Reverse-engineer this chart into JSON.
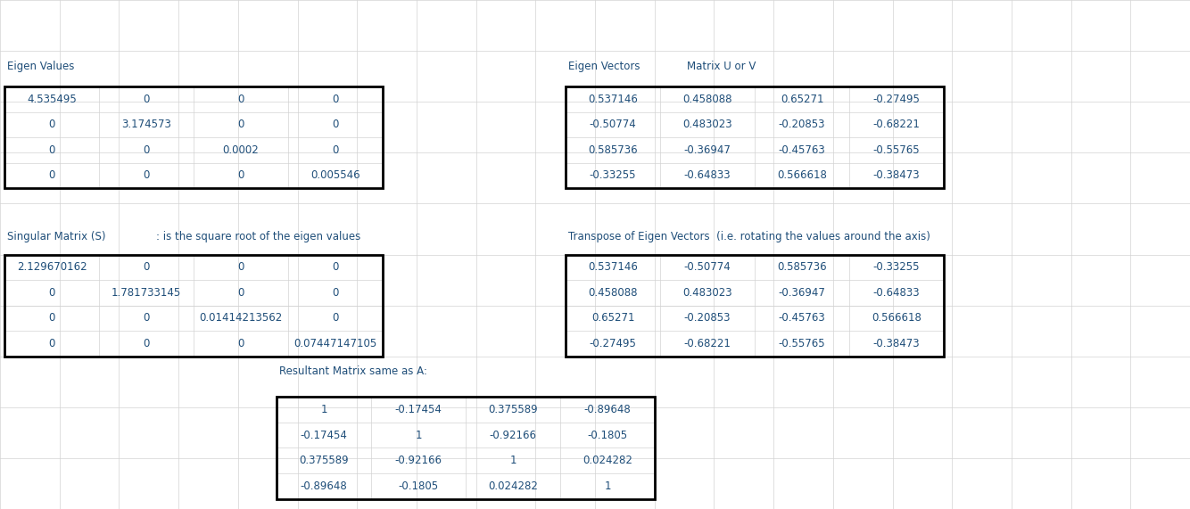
{
  "bg_color": "#ffffff",
  "grid_color": "#d3d3d3",
  "text_color": "#1f4e79",
  "border_color": "#000000",
  "font_size": 8.5,
  "eigen_values_label": "Eigen Values",
  "eigen_values": [
    [
      "4.535495",
      "0",
      "0",
      "0"
    ],
    [
      "0",
      "3.174573",
      "0",
      "0"
    ],
    [
      "0",
      "0",
      "0.0002",
      "0"
    ],
    [
      "0",
      "0",
      "0",
      "0.005546"
    ]
  ],
  "singular_matrix_label": "Singular Matrix (S)",
  "singular_matrix_note": ": is the square root of the eigen values",
  "singular_matrix": [
    [
      "2.129670162",
      "0",
      "0",
      "0"
    ],
    [
      "0",
      "1.781733145",
      "0",
      "0"
    ],
    [
      "0",
      "0",
      "0.01414213562",
      "0"
    ],
    [
      "0",
      "0",
      "0",
      "0.07447147105"
    ]
  ],
  "eigen_vectors_label": "Eigen Vectors",
  "matrix_uv_label": "Matrix U or V",
  "eigen_vectors": [
    [
      "0.537146",
      "0.458088",
      "0.65271",
      "-0.27495"
    ],
    [
      "-0.50774",
      "0.483023",
      "-0.20853",
      "-0.68221"
    ],
    [
      "0.585736",
      "-0.36947",
      "-0.45763",
      "-0.55765"
    ],
    [
      "-0.33255",
      "-0.64833",
      "0.566618",
      "-0.38473"
    ]
  ],
  "transpose_label": "Transpose of Eigen Vectors  (i.e. rotating the values around the axis)",
  "transpose_matrix": [
    [
      "0.537146",
      "-0.50774",
      "0.585736",
      "-0.33255"
    ],
    [
      "0.458088",
      "0.483023",
      "-0.36947",
      "-0.64833"
    ],
    [
      "0.65271",
      "-0.20853",
      "-0.45763",
      "0.566618"
    ],
    [
      "-0.27495",
      "-0.68221",
      "-0.55765",
      "-0.38473"
    ]
  ],
  "resultant_label": "Resultant Matrix same as A:",
  "resultant_matrix": [
    [
      "1",
      "-0.17454",
      "0.375589",
      "-0.89648"
    ],
    [
      "-0.17454",
      "1",
      "-0.92166",
      "-0.1805"
    ],
    [
      "0.375589",
      "-0.92166",
      "1",
      "0.024282"
    ],
    [
      "-0.89648",
      "-0.1805",
      "0.024282",
      "1"
    ]
  ],
  "ncols_grid": 20,
  "nrows_grid": 10
}
